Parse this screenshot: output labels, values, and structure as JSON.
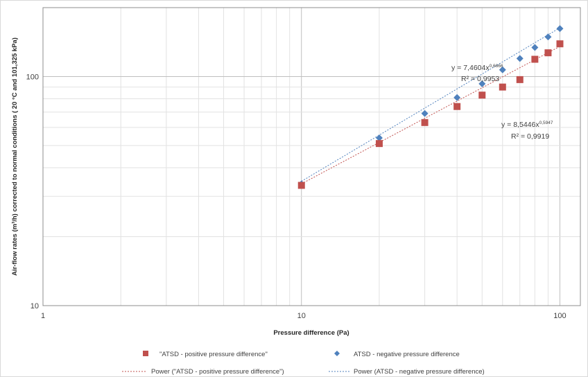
{
  "chart_data": {
    "type": "scatter",
    "title": "",
    "xlabel": "Pressure difference (Pa)",
    "ylabel": "Air-flow rates (m³/h) corrected to normal conditions  ( 20 °C and 101,325 kPa)",
    "x_scale": "log",
    "y_scale": "log",
    "xlim": [
      1,
      120
    ],
    "ylim": [
      10,
      200
    ],
    "x_tick_labels": [
      "1",
      "10",
      "100"
    ],
    "y_tick_labels": [
      "10",
      "100"
    ],
    "grid": true,
    "legend_position": "bottom",
    "series": [
      {
        "name": "\"ATSD - positive pressure difference\"",
        "marker": "square",
        "color": "#c0504d",
        "points": [
          [
            10,
            33.5
          ],
          [
            20,
            51
          ],
          [
            30,
            63
          ],
          [
            40,
            74
          ],
          [
            50,
            83
          ],
          [
            60,
            90
          ],
          [
            70,
            97
          ],
          [
            80,
            119
          ],
          [
            90,
            127
          ],
          [
            100,
            139
          ]
        ]
      },
      {
        "name": "ATSD - negative pressure difference",
        "marker": "diamond",
        "color": "#4f81bd",
        "points": [
          [
            10,
            34
          ],
          [
            20,
            54
          ],
          [
            30,
            69
          ],
          [
            40,
            81
          ],
          [
            50,
            93
          ],
          [
            60,
            107
          ],
          [
            70,
            120
          ],
          [
            80,
            134
          ],
          [
            90,
            149
          ],
          [
            100,
            162
          ]
        ]
      }
    ],
    "trendlines": [
      {
        "name": "Power (\"ATSD - positive pressure difference\")",
        "color": "#c0504d",
        "coef": 8.5446,
        "exponent": 0.6,
        "x_range": [
          10,
          100
        ],
        "equation_base": "y = 8,5446x",
        "equation_exponent": "0,5947",
        "r2_text": "R² = 0,9919"
      },
      {
        "name": "Power (ATSD - negative pressure difference)",
        "color": "#4f81bd",
        "coef": 7.4604,
        "exponent": 0.67,
        "x_range": [
          10,
          100
        ],
        "equation_base": "y = 7,4604x",
        "equation_exponent": "0,6666",
        "r2_text": "R² = 0,9953"
      }
    ]
  }
}
